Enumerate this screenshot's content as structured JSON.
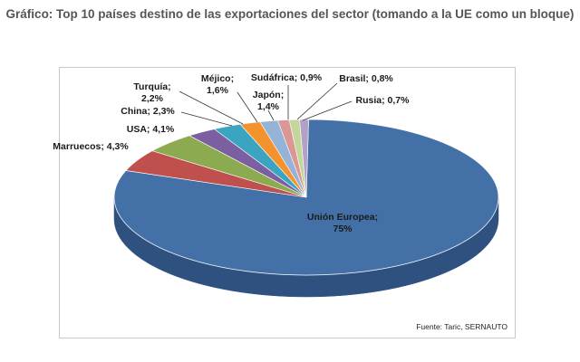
{
  "title": "Gráfico: Top 10 países destino de las exportaciones del sector (tomando a la UE como un bloque)",
  "source": "Fuente: Taric, SERNAUTO",
  "chart_data": {
    "type": "pie",
    "title": "Gráfico: Top 10 países destino de las exportaciones del sector (tomando a la UE como un bloque)",
    "slices": [
      {
        "name": "Unión Europea",
        "label_lines": [
          "Unión Europea;",
          "75%"
        ],
        "value": 75,
        "color": "#4470a8",
        "side": "#2e5180"
      },
      {
        "name": "Marruecos",
        "label_lines": [
          "Marruecos; 4,3%"
        ],
        "value": 4.3,
        "color": "#c0504d",
        "side": "#8c3532"
      },
      {
        "name": "USA",
        "label_lines": [
          "USA; 4,1%"
        ],
        "value": 4.1,
        "color": "#8caa4f",
        "side": "#627a32"
      },
      {
        "name": "China",
        "label_lines": [
          "China; 2,3%"
        ],
        "value": 2.3,
        "color": "#7b5fa0",
        "side": "#564070"
      },
      {
        "name": "Turquía",
        "label_lines": [
          "Turquía;",
          "2,2%"
        ],
        "value": 2.2,
        "color": "#3ba4c0",
        "side": "#27788e"
      },
      {
        "name": "Méjico",
        "label_lines": [
          "Méjico;",
          "1,6%"
        ],
        "value": 1.6,
        "color": "#f4932e",
        "side": "#b86a1a"
      },
      {
        "name": "Japón",
        "label_lines": [
          "Japón;",
          "1,4%"
        ],
        "value": 1.4,
        "color": "#95b3d7",
        "side": "#6b8ab0"
      },
      {
        "name": "Sudáfrica",
        "label_lines": [
          "Sudáfrica; 0,9%"
        ],
        "value": 0.9,
        "color": "#d99795",
        "side": "#a86f6d"
      },
      {
        "name": "Brasil",
        "label_lines": [
          "Brasil; 0,8%"
        ],
        "value": 0.8,
        "color": "#c3d69b",
        "side": "#93a570"
      },
      {
        "name": "Rusia",
        "label_lines": [
          "Rusia; 0,7%"
        ],
        "value": 0.7,
        "color": "#b3a2c7",
        "side": "#8577a0"
      }
    ]
  }
}
